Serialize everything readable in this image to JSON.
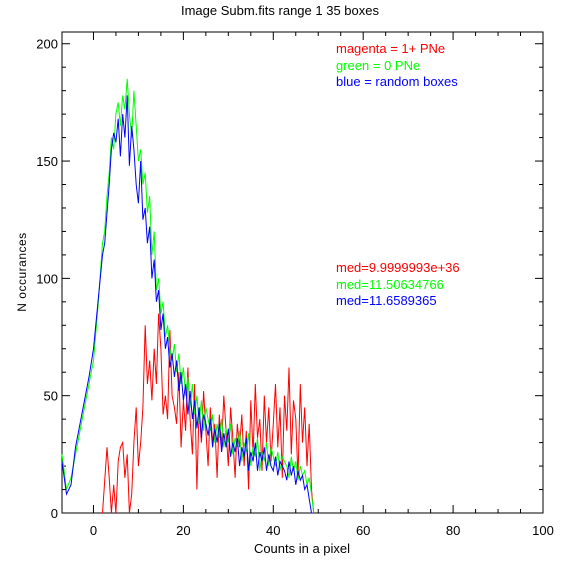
{
  "chart_data": {
    "type": "line",
    "title": "Image Subm.fits   range 1    35 boxes",
    "xlabel": "Counts in a pixel",
    "ylabel": "N occurances",
    "xlim": [
      -7,
      100
    ],
    "ylim": [
      0,
      205
    ],
    "xticks": [
      0,
      20,
      40,
      60,
      80,
      100
    ],
    "yticks": [
      0,
      50,
      100,
      150,
      200
    ],
    "legend": [
      {
        "text": "magenta = 1+ PNe",
        "color": "#ff0000"
      },
      {
        "text": "green = 0 PNe",
        "color": "#00ff00"
      },
      {
        "text": "blue = random boxes",
        "color": "#0000ff"
      }
    ],
    "medians": [
      {
        "text": "med=9.9999993e+36",
        "color": "#ff0000"
      },
      {
        "text": "med=11.50634766",
        "color": "#00ff00"
      },
      {
        "text": "med=11.6589365",
        "color": "#0000ff"
      }
    ],
    "series": [
      {
        "color": "#ff0000",
        "x": [
          2,
          3,
          3.5,
          4,
          4.5,
          5,
          5.5,
          6,
          6.5,
          7,
          7.5,
          8,
          8.5,
          9,
          9.5,
          10,
          10.5,
          11,
          11.5,
          12,
          12.5,
          13,
          13.5,
          14,
          14.5,
          15,
          15.5,
          16,
          16.5,
          17,
          17.5,
          18,
          18.5,
          19,
          19.5,
          20,
          20.5,
          21,
          21.5,
          22,
          22.5,
          23,
          23.5,
          24,
          24.5,
          25,
          25.5,
          26,
          26.5,
          27,
          27.5,
          28,
          28.5,
          29,
          29.5,
          30,
          30.5,
          31,
          31.5,
          32,
          32.5,
          33,
          33.5,
          34,
          34.5,
          35,
          35.5,
          36,
          36.5,
          37,
          37.5,
          38,
          38.5,
          39,
          39.5,
          40,
          40.5,
          41,
          41.5,
          42,
          42.5,
          43,
          43.5,
          44,
          44.5,
          45,
          45.5,
          46,
          46.5,
          47,
          47.5,
          48,
          48.5,
          49
        ],
        "y": [
          0,
          28,
          15,
          0,
          12,
          0,
          22,
          28,
          30,
          15,
          25,
          0,
          8,
          30,
          45,
          20,
          30,
          45,
          80,
          55,
          65,
          48,
          70,
          55,
          85,
          70,
          42,
          50,
          40,
          78,
          50,
          45,
          38,
          60,
          28,
          48,
          35,
          62,
          40,
          25,
          55,
          10,
          45,
          30,
          52,
          35,
          20,
          45,
          30,
          38,
          15,
          42,
          28,
          50,
          35,
          20,
          45,
          32,
          15,
          38,
          28,
          42,
          20,
          35,
          10,
          48,
          25,
          55,
          32,
          40,
          18,
          50,
          30,
          45,
          22,
          38,
          55,
          28,
          45,
          15,
          50,
          35,
          62,
          25,
          48,
          40,
          15,
          55,
          30,
          45,
          20,
          38,
          10,
          0
        ]
      },
      {
        "color": "#00ff00",
        "x": [
          -7,
          -6,
          -5,
          -4,
          -3,
          -2,
          -1,
          0,
          1,
          2,
          2.5,
          3,
          3.5,
          4,
          4.5,
          5,
          5.5,
          6,
          6.5,
          7,
          7.5,
          8,
          8.5,
          9,
          9.5,
          10,
          10.5,
          11,
          11.5,
          12,
          12.5,
          13,
          13.5,
          14,
          14.5,
          15,
          15.5,
          16,
          16.5,
          17,
          17.5,
          18,
          18.5,
          19,
          19.5,
          20,
          20.5,
          21,
          21.5,
          22,
          22.5,
          23,
          23.5,
          24,
          24.5,
          25,
          25.5,
          26,
          26.5,
          27,
          27.5,
          28,
          28.5,
          29,
          29.5,
          30,
          30.5,
          31,
          31.5,
          32,
          32.5,
          33,
          33.5,
          34,
          34.5,
          35,
          35.5,
          36,
          36.5,
          37,
          37.5,
          38,
          38.5,
          39,
          39.5,
          40,
          40.5,
          41,
          41.5,
          42,
          42.5,
          43,
          43.5,
          44,
          44.5,
          45,
          45.5,
          46,
          46.5,
          47,
          47.5,
          48,
          48.5,
          49
        ],
        "y": [
          25,
          10,
          15,
          25,
          35,
          45,
          55,
          65,
          88,
          115,
          120,
          135,
          145,
          160,
          155,
          170,
          175,
          165,
          178,
          172,
          185,
          170,
          160,
          180,
          165,
          150,
          155,
          140,
          145,
          128,
          135,
          110,
          120,
          95,
          100,
          85,
          90,
          75,
          80,
          70,
          65,
          72,
          60,
          68,
          55,
          62,
          50,
          58,
          45,
          55,
          42,
          50,
          38,
          48,
          35,
          45,
          40,
          35,
          42,
          30,
          38,
          32,
          40,
          28,
          36,
          30,
          38,
          25,
          32,
          28,
          35,
          22,
          30,
          26,
          34,
          20,
          28,
          24,
          32,
          18,
          26,
          22,
          30,
          20,
          28,
          24,
          20,
          26,
          18,
          24,
          22,
          20,
          15,
          24,
          18,
          22,
          14,
          20,
          16,
          18,
          12,
          15,
          8,
          0
        ]
      },
      {
        "color": "#0000ff",
        "x": [
          -7,
          -6,
          -5,
          -4,
          -3,
          -2,
          -1,
          0,
          1,
          2,
          2.5,
          3,
          3.5,
          4,
          4.5,
          5,
          5.5,
          6,
          6.5,
          7,
          7.5,
          8,
          8.5,
          9,
          9.5,
          10,
          10.5,
          11,
          11.5,
          12,
          12.5,
          13,
          13.5,
          14,
          14.5,
          15,
          15.5,
          16,
          16.5,
          17,
          17.5,
          18,
          18.5,
          19,
          19.5,
          20,
          20.5,
          21,
          21.5,
          22,
          22.5,
          23,
          23.5,
          24,
          24.5,
          25,
          25.5,
          26,
          26.5,
          27,
          27.5,
          28,
          28.5,
          29,
          29.5,
          30,
          30.5,
          31,
          31.5,
          32,
          32.5,
          33,
          33.5,
          34,
          34.5,
          35,
          35.5,
          36,
          36.5,
          37,
          37.5,
          38,
          38.5,
          39,
          39.5,
          40,
          40.5,
          41,
          41.5,
          42,
          42.5,
          43,
          43.5,
          44,
          44.5,
          45,
          45.5,
          46,
          46.5,
          47,
          47.5,
          48,
          48.5,
          49
        ],
        "y": [
          22,
          8,
          12,
          28,
          38,
          48,
          58,
          70,
          90,
          110,
          115,
          128,
          140,
          155,
          162,
          158,
          168,
          152,
          170,
          160,
          178,
          148,
          165,
          155,
          140,
          132,
          150,
          125,
          130,
          115,
          122,
          100,
          108,
          90,
          95,
          78,
          85,
          70,
          75,
          62,
          68,
          58,
          65,
          52,
          60,
          48,
          55,
          42,
          52,
          40,
          48,
          36,
          45,
          32,
          42,
          38,
          33,
          40,
          28,
          36,
          30,
          38,
          26,
          34,
          28,
          36,
          24,
          30,
          26,
          32,
          20,
          28,
          24,
          32,
          18,
          26,
          22,
          30,
          18,
          26,
          22,
          28,
          18,
          25,
          20,
          18,
          24,
          16,
          22,
          20,
          18,
          14,
          22,
          16,
          20,
          12,
          18,
          14,
          16,
          10,
          12,
          6,
          0,
          0
        ]
      }
    ]
  }
}
